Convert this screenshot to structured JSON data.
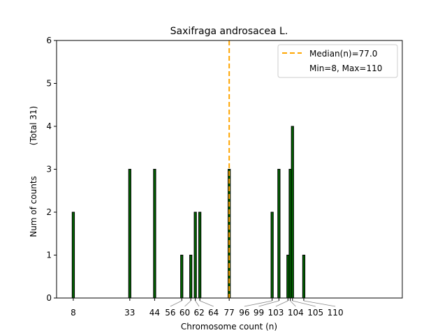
{
  "chart_data": {
    "type": "bar",
    "title": "Saxifraga androsacea L.",
    "xlabel": "Chromosome count (n)",
    "ylabel": "Num of counts",
    "ylabel2": "(Total 31)",
    "x": [
      8,
      33,
      44,
      56,
      60,
      62,
      64,
      77,
      96,
      99,
      103,
      104,
      105,
      110
    ],
    "values": [
      2,
      3,
      3,
      1,
      1,
      2,
      2,
      3,
      2,
      3,
      1,
      3,
      4,
      1
    ],
    "xtick_labels": [
      "8",
      "33",
      "44",
      "56",
      "60",
      "62",
      "64",
      "77",
      "96",
      "99",
      "103",
      "104",
      "105",
      "110"
    ],
    "yticks": [
      "0",
      "1",
      "2",
      "3",
      "4",
      "5",
      "6"
    ],
    "xlim": [
      0.6,
      153.6
    ],
    "ylim": [
      0,
      6
    ],
    "median": 77.0,
    "legend": {
      "placement": "top-right",
      "entries": [
        "Median(n)=77.0",
        "Min=8, Max=110"
      ]
    },
    "colors": {
      "bar": "#006400",
      "median": "#FFA500"
    }
  }
}
